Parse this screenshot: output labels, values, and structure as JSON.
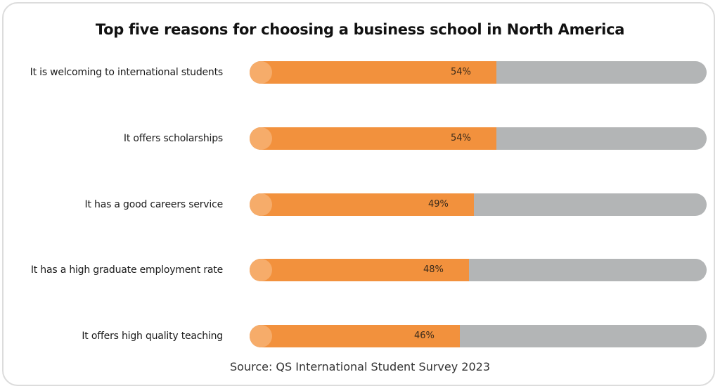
{
  "chart_data": {
    "type": "bar",
    "title": "Top five reasons for choosing a business school in North America",
    "categories": [
      "It is welcoming to international students",
      "It offers scholarships",
      "It has a good careers service",
      "It has a high graduate employment rate",
      "It offers high quality teaching"
    ],
    "values": [
      54,
      54,
      49,
      48,
      46
    ],
    "value_labels": [
      "54%",
      "54%",
      "49%",
      "48%",
      "46%"
    ],
    "xlim": [
      0,
      100
    ],
    "orientation": "horizontal",
    "grid": false,
    "source": "Source: QS International Student Survey 2023"
  },
  "colors": {
    "fill": "#f2913d",
    "cap": "#f6ac6a",
    "track": "#b3b5b6"
  }
}
